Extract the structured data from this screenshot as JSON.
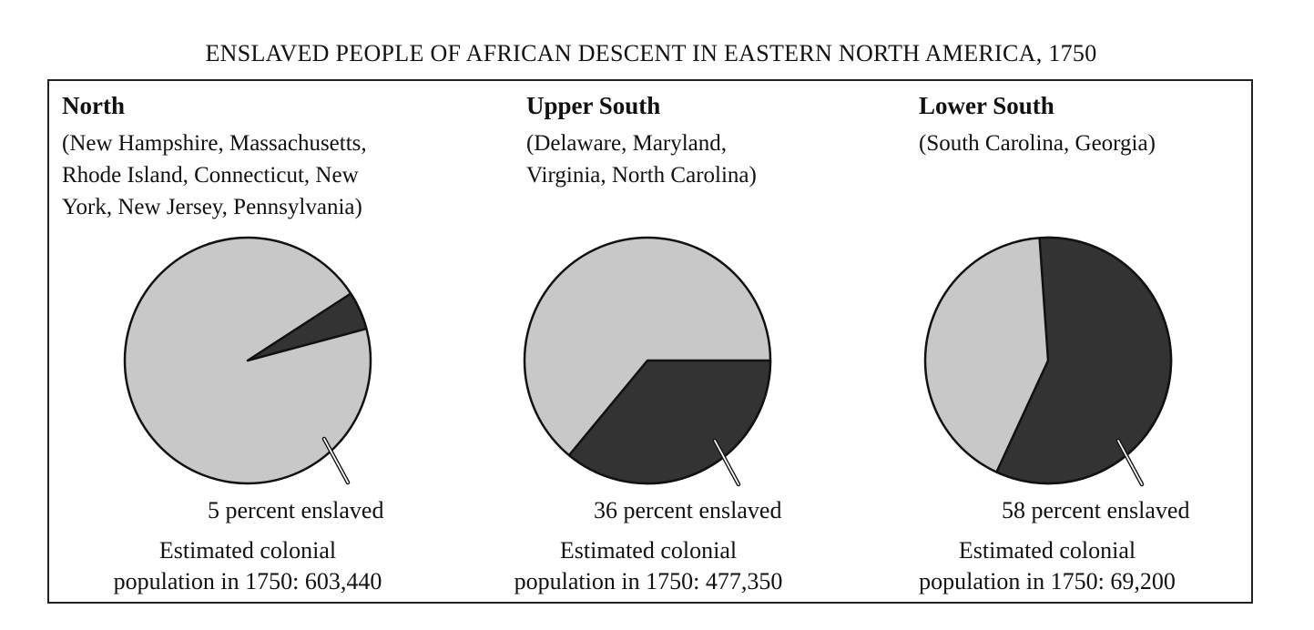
{
  "title": "ENSLAVED PEOPLE OF AFRICAN DESCENT IN EASTERN NORTH AMERICA, 1750",
  "colors": {
    "free": "#c8c8c8",
    "enslaved": "#333333",
    "outline": "#111111"
  },
  "regions": [
    {
      "name": "North",
      "states": "(New Hampshire, Massachusetts, Rhode Island, Connecticut, New York, New Jersey, Pennsylvania)",
      "states_lines": [
        "(New Hampshire, Massachusetts,",
        "Rhode Island, Connecticut, New",
        "York, New Jersey, Pennsylvania)"
      ],
      "pct_label": "5 percent enslaved",
      "pop_line1": "Estimated colonial",
      "pop_line2": "population in 1750: 603,440"
    },
    {
      "name": "Upper South",
      "states": "(Delaware, Maryland, Virginia, North Carolina)",
      "states_lines": [
        "(Delaware, Maryland,",
        "Virginia, North Carolina)"
      ],
      "pct_label": "36 percent enslaved",
      "pop_line1": "Estimated colonial",
      "pop_line2": "population in 1750: 477,350"
    },
    {
      "name": "Lower South",
      "states": "(South Carolina, Georgia)",
      "states_lines": [
        "(South Carolina, Georgia)"
      ],
      "pct_label": "58 percent enslaved",
      "pop_line1": "Estimated colonial",
      "pop_line2": "population in 1750: 69,200"
    }
  ],
  "chart_data": {
    "type": "pie",
    "title": "ENSLAVED PEOPLE OF AFRICAN DESCENT IN EASTERN NORTH AMERICA, 1750",
    "series": [
      {
        "name": "North",
        "enslaved_percent": 5,
        "population": 603440
      },
      {
        "name": "Upper South",
        "enslaved_percent": 36,
        "population": 477350
      },
      {
        "name": "Lower South",
        "enslaved_percent": 58,
        "population": 69200
      }
    ]
  }
}
